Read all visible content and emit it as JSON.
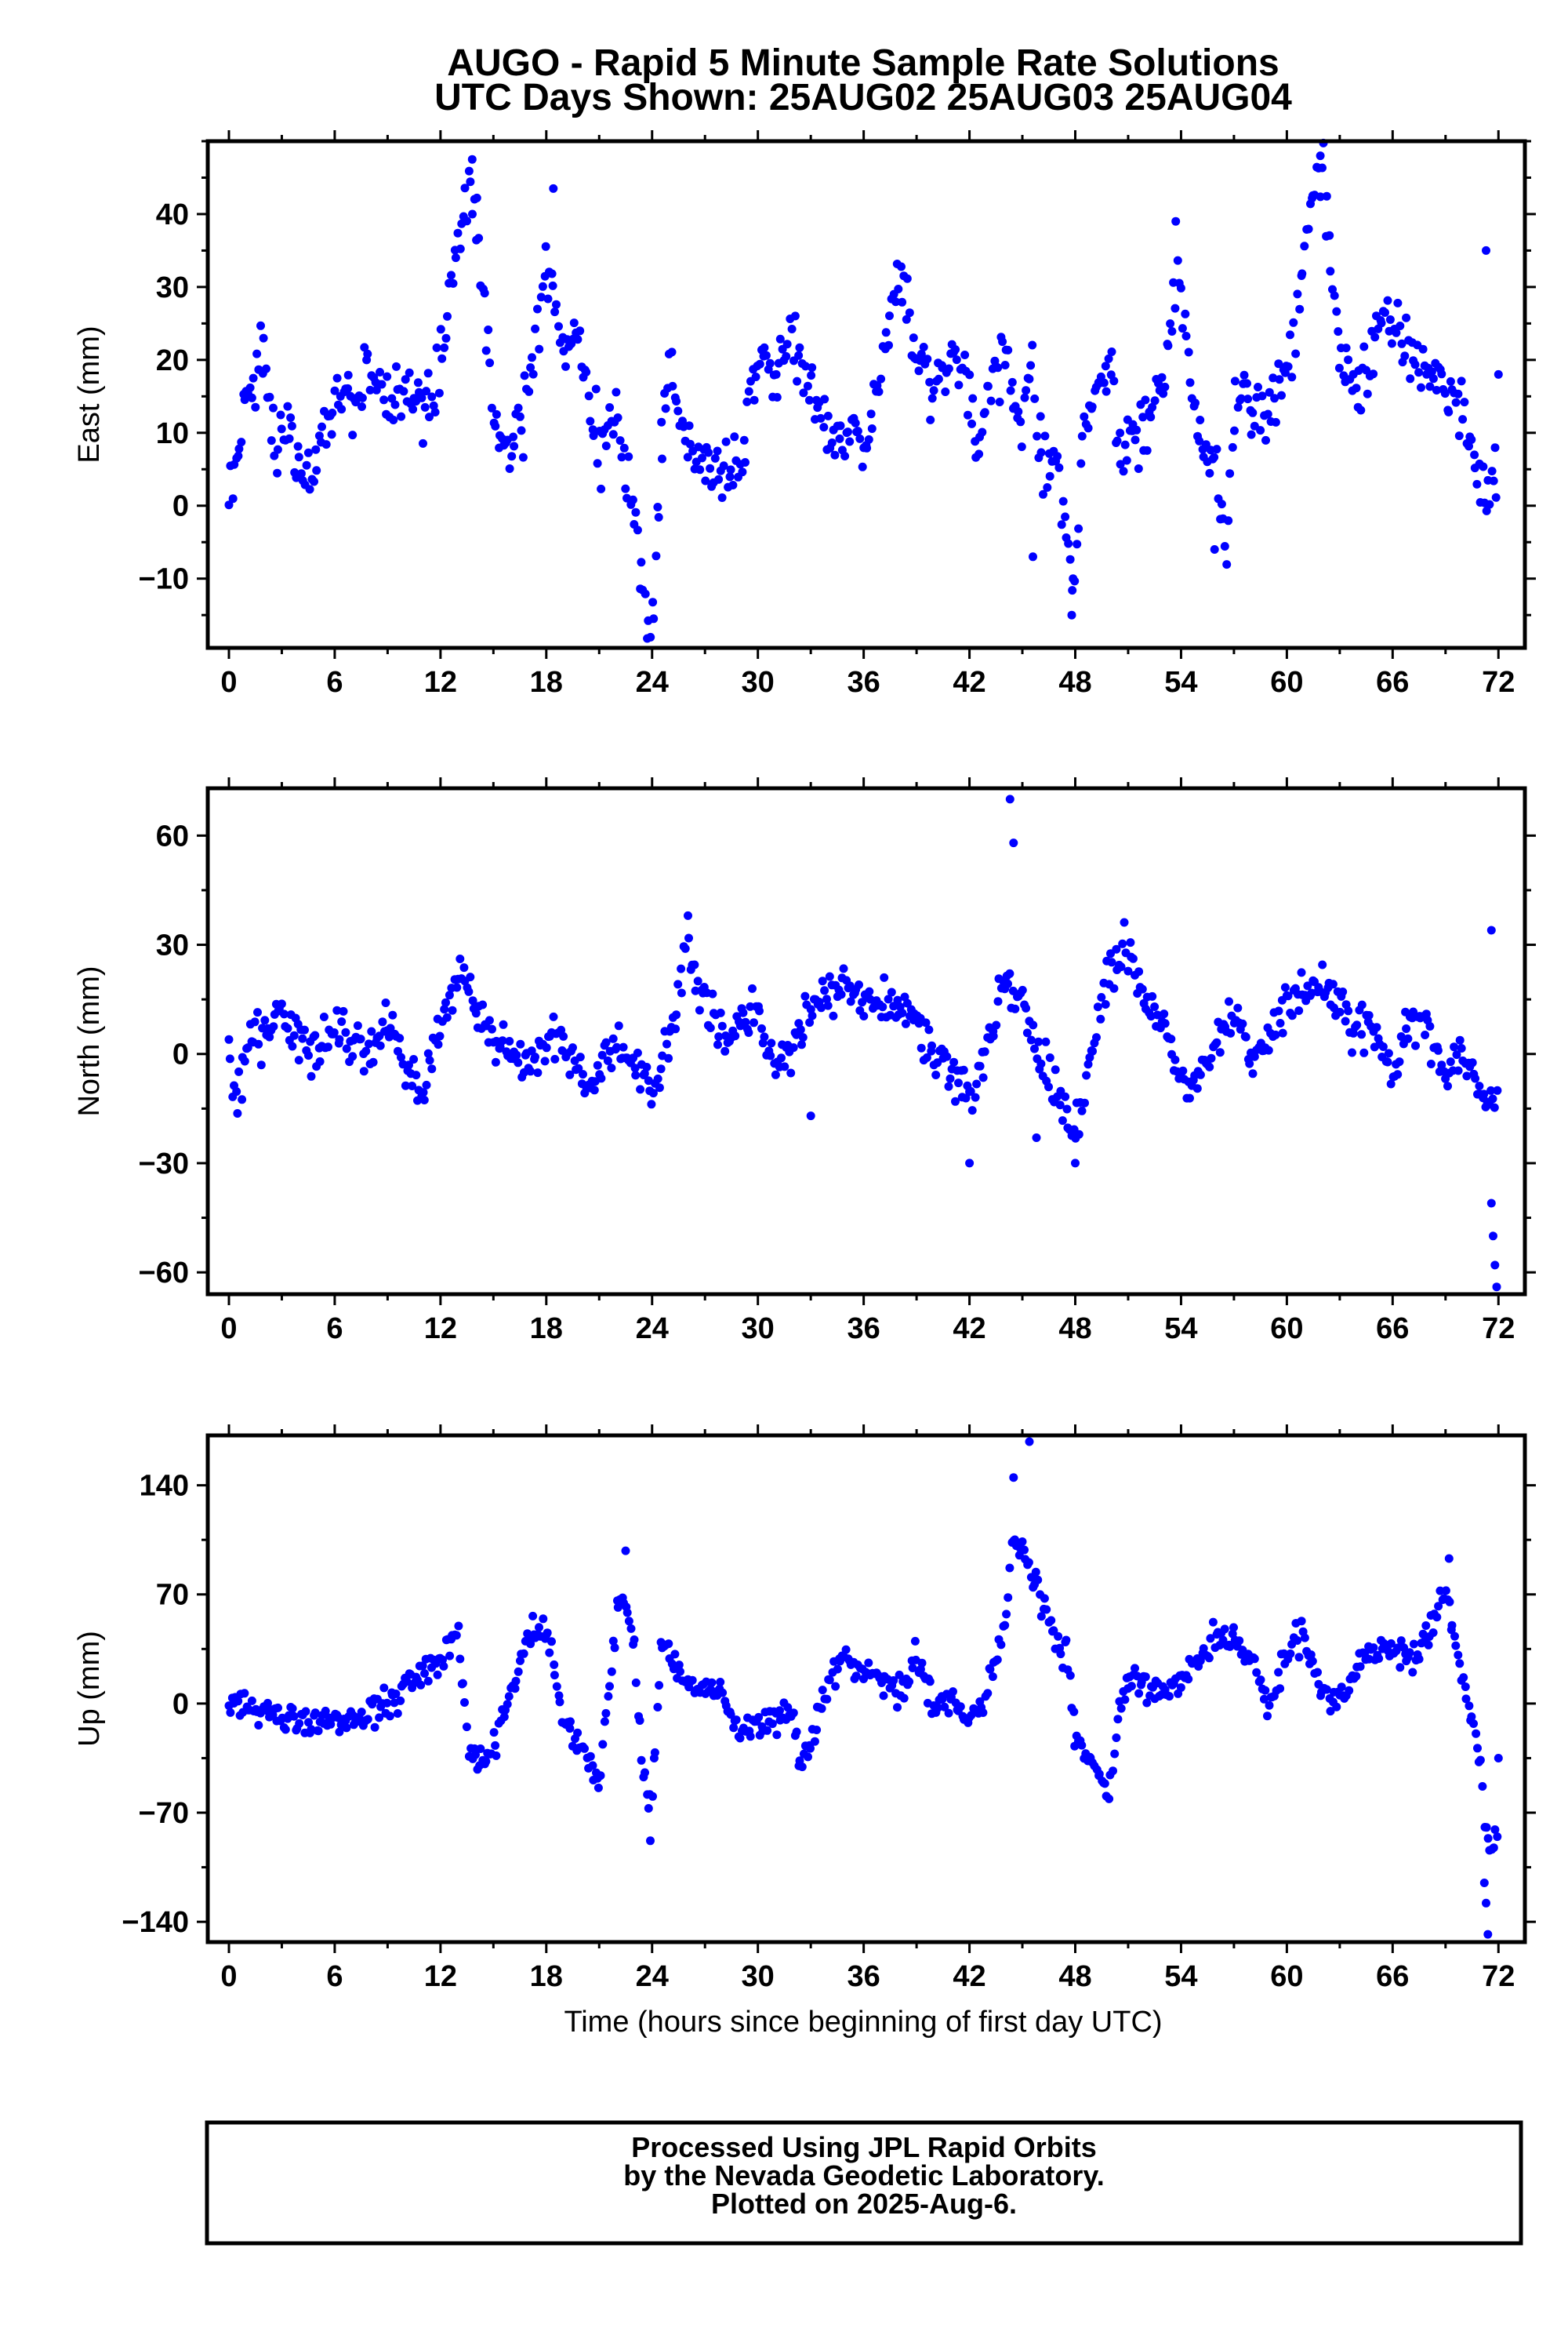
{
  "title_line1": "AUGO - Rapid 5 Minute Sample Rate Solutions",
  "title_line2": "UTC Days Shown:  25AUG02 25AUG03 25AUG04",
  "xlabel": "Time (hours since beginning of first day UTC)",
  "footer": {
    "line1": "Processed Using JPL Rapid Orbits",
    "line2": "by the Nevada Geodetic Laboratory.",
    "line3": "Plotted on 2025-Aug-6."
  },
  "colors": {
    "points": "#0000ff",
    "frame": "#000000"
  },
  "chart_data": [
    {
      "type": "scatter",
      "name": "east",
      "ylabel": "East (mm)",
      "xlim": [
        -1.2,
        73.5
      ],
      "ylim": [
        -19.5,
        50
      ],
      "xticks": [
        0,
        6,
        12,
        18,
        24,
        30,
        36,
        42,
        48,
        54,
        60,
        66,
        72
      ],
      "yticks": [
        -10,
        0,
        10,
        20,
        30,
        40
      ],
      "grid": false,
      "anchors": [
        [
          0,
          0
        ],
        [
          1,
          15
        ],
        [
          2,
          21
        ],
        [
          2.5,
          8
        ],
        [
          3.5,
          9
        ],
        [
          4,
          4
        ],
        [
          5,
          6
        ],
        [
          6,
          16
        ],
        [
          7,
          15
        ],
        [
          8,
          18
        ],
        [
          9,
          12
        ],
        [
          10,
          16
        ],
        [
          11,
          14
        ],
        [
          12,
          19
        ],
        [
          12.5,
          27
        ],
        [
          13,
          36
        ],
        [
          13.5,
          43
        ],
        [
          14,
          42
        ],
        [
          14.5,
          28
        ],
        [
          15,
          12
        ],
        [
          16,
          6
        ],
        [
          17,
          16
        ],
        [
          18,
          32
        ],
        [
          18.5,
          28
        ],
        [
          19,
          22
        ],
        [
          20,
          20
        ],
        [
          21,
          8
        ],
        [
          22,
          15
        ],
        [
          22.5,
          5
        ],
        [
          23,
          -2
        ],
        [
          23.5,
          -10
        ],
        [
          24,
          -18
        ],
        [
          24.5,
          8
        ],
        [
          25,
          18
        ],
        [
          26,
          10
        ],
        [
          27,
          5
        ],
        [
          28,
          3
        ],
        [
          29,
          5
        ],
        [
          30,
          21
        ],
        [
          31,
          18
        ],
        [
          32,
          22
        ],
        [
          33,
          16
        ],
        [
          34,
          9
        ],
        [
          35,
          11
        ],
        [
          36,
          8
        ],
        [
          37,
          18
        ],
        [
          38,
          30
        ],
        [
          38.5,
          27
        ],
        [
          39,
          20
        ],
        [
          40,
          16
        ],
        [
          41,
          19
        ],
        [
          42,
          18
        ],
        [
          42.5,
          5
        ],
        [
          43,
          18
        ],
        [
          44,
          20
        ],
        [
          45,
          10
        ],
        [
          45.5,
          20
        ],
        [
          46,
          8
        ],
        [
          47,
          4
        ],
        [
          47.5,
          -4
        ],
        [
          48,
          -12
        ],
        [
          48.5,
          10
        ],
        [
          49,
          14
        ],
        [
          50,
          20
        ],
        [
          50.5,
          5
        ],
        [
          51,
          9
        ],
        [
          52,
          12
        ],
        [
          53,
          18
        ],
        [
          54,
          32
        ],
        [
          54.5,
          18
        ],
        [
          55,
          10
        ],
        [
          56,
          6
        ],
        [
          56.5,
          -5
        ],
        [
          57,
          10
        ],
        [
          57.5,
          18
        ],
        [
          58,
          11
        ],
        [
          59,
          14
        ],
        [
          60,
          18
        ],
        [
          61,
          32
        ],
        [
          61.5,
          44
        ],
        [
          62,
          46
        ],
        [
          63,
          20
        ],
        [
          64,
          16
        ],
        [
          65,
          22
        ],
        [
          66,
          28
        ],
        [
          67,
          20
        ],
        [
          68,
          18
        ],
        [
          69,
          16
        ],
        [
          70,
          14
        ],
        [
          71,
          2
        ],
        [
          72,
          5
        ]
      ],
      "outliers": [
        [
          13.8,
          47.5
        ],
        [
          18.4,
          43.5
        ],
        [
          45.6,
          -7
        ],
        [
          47.8,
          -15
        ],
        [
          53.7,
          39
        ],
        [
          55.9,
          -6
        ],
        [
          61.9,
          48
        ],
        [
          71.3,
          35
        ],
        [
          72,
          18
        ]
      ],
      "noise": 3.2
    },
    {
      "type": "scatter",
      "name": "north",
      "ylabel": "North (mm)",
      "xlim": [
        -1.2,
        73.5
      ],
      "ylim": [
        -66,
        73
      ],
      "xticks": [
        0,
        6,
        12,
        18,
        24,
        30,
        36,
        42,
        48,
        54,
        60,
        66,
        72
      ],
      "yticks": [
        -60,
        -30,
        0,
        30,
        60
      ],
      "grid": false,
      "anchors": [
        [
          0,
          -2
        ],
        [
          0.5,
          -13
        ],
        [
          1,
          3
        ],
        [
          2,
          5
        ],
        [
          3,
          12
        ],
        [
          4,
          5
        ],
        [
          5,
          -3
        ],
        [
          6,
          8
        ],
        [
          7,
          2
        ],
        [
          8,
          0
        ],
        [
          9,
          12
        ],
        [
          10,
          -3
        ],
        [
          11,
          -8
        ],
        [
          12,
          5
        ],
        [
          13,
          22
        ],
        [
          14,
          12
        ],
        [
          15,
          4
        ],
        [
          16,
          0
        ],
        [
          17,
          -3
        ],
        [
          18,
          2
        ],
        [
          19,
          4
        ],
        [
          20,
          -8
        ],
        [
          21,
          -5
        ],
        [
          22,
          4
        ],
        [
          23,
          -3
        ],
        [
          24,
          -12
        ],
        [
          25,
          5
        ],
        [
          26,
          30
        ],
        [
          27,
          14
        ],
        [
          28,
          5
        ],
        [
          29,
          8
        ],
        [
          30,
          10
        ],
        [
          31,
          -5
        ],
        [
          32,
          2
        ],
        [
          33,
          15
        ],
        [
          34,
          14
        ],
        [
          35,
          20
        ],
        [
          36,
          12
        ],
        [
          37,
          16
        ],
        [
          38,
          12
        ],
        [
          39,
          8
        ],
        [
          40,
          0
        ],
        [
          41,
          -5
        ],
        [
          42,
          -15
        ],
        [
          43,
          5
        ],
        [
          44,
          20
        ],
        [
          45,
          14
        ],
        [
          46,
          -2
        ],
        [
          47,
          -12
        ],
        [
          48,
          -22
        ],
        [
          49,
          5
        ],
        [
          50,
          22
        ],
        [
          51,
          30
        ],
        [
          52,
          14
        ],
        [
          53,
          8
        ],
        [
          54,
          -5
        ],
        [
          55,
          -8
        ],
        [
          56,
          5
        ],
        [
          57,
          10
        ],
        [
          58,
          -2
        ],
        [
          59,
          5
        ],
        [
          60,
          12
        ],
        [
          61,
          18
        ],
        [
          62,
          18
        ],
        [
          63,
          10
        ],
        [
          64,
          6
        ],
        [
          65,
          5
        ],
        [
          66,
          -6
        ],
        [
          67,
          10
        ],
        [
          68,
          6
        ],
        [
          69,
          -6
        ],
        [
          70,
          0
        ],
        [
          71,
          -10
        ],
        [
          72,
          -12
        ]
      ],
      "outliers": [
        [
          44.3,
          70
        ],
        [
          44.5,
          58
        ],
        [
          71.6,
          34
        ],
        [
          71.6,
          -41
        ],
        [
          71.7,
          -50
        ],
        [
          71.8,
          -58
        ],
        [
          71.9,
          -64
        ],
        [
          42,
          -30
        ],
        [
          48,
          -30
        ],
        [
          33,
          -17
        ],
        [
          45.8,
          -23
        ]
      ],
      "noise": 4.5
    },
    {
      "type": "scatter",
      "name": "up",
      "ylabel": "Up (mm)",
      "xlim": [
        -1.2,
        73.5
      ],
      "ylim": [
        -153,
        172
      ],
      "xticks": [
        0,
        6,
        12,
        18,
        24,
        30,
        36,
        42,
        48,
        54,
        60,
        66,
        72
      ],
      "yticks": [
        -140,
        -70,
        0,
        70,
        140
      ],
      "grid": false,
      "anchors": [
        [
          0,
          0
        ],
        [
          1,
          -5
        ],
        [
          2,
          -6
        ],
        [
          3,
          -8
        ],
        [
          4,
          -12
        ],
        [
          5,
          -18
        ],
        [
          6,
          -10
        ],
        [
          7,
          -8
        ],
        [
          8,
          -6
        ],
        [
          9,
          -2
        ],
        [
          10,
          10
        ],
        [
          11,
          18
        ],
        [
          12,
          30
        ],
        [
          13,
          45
        ],
        [
          13.5,
          -20
        ],
        [
          14,
          -40
        ],
        [
          15,
          -30
        ],
        [
          16,
          5
        ],
        [
          17,
          45
        ],
        [
          18,
          48
        ],
        [
          19,
          -10
        ],
        [
          20,
          -30
        ],
        [
          21,
          -50
        ],
        [
          22,
          60
        ],
        [
          22.5,
          70
        ],
        [
          23,
          30
        ],
        [
          23.5,
          -40
        ],
        [
          24,
          -70
        ],
        [
          24.5,
          40
        ],
        [
          25,
          30
        ],
        [
          26,
          15
        ],
        [
          27,
          10
        ],
        [
          28,
          5
        ],
        [
          29,
          -20
        ],
        [
          30,
          -15
        ],
        [
          31,
          -10
        ],
        [
          32,
          -8
        ],
        [
          32.5,
          -40
        ],
        [
          33,
          -25
        ],
        [
          34,
          15
        ],
        [
          35,
          30
        ],
        [
          36,
          20
        ],
        [
          37,
          15
        ],
        [
          38,
          5
        ],
        [
          39,
          30
        ],
        [
          40,
          0
        ],
        [
          41,
          0
        ],
        [
          42,
          -10
        ],
        [
          43,
          5
        ],
        [
          44,
          50
        ],
        [
          44.5,
          110
        ],
        [
          45,
          100
        ],
        [
          45.5,
          80
        ],
        [
          46,
          70
        ],
        [
          47,
          40
        ],
        [
          47.5,
          30
        ],
        [
          48,
          -20
        ],
        [
          49,
          -40
        ],
        [
          50,
          -55
        ],
        [
          50.5,
          0
        ],
        [
          51,
          15
        ],
        [
          52,
          10
        ],
        [
          53,
          5
        ],
        [
          54,
          15
        ],
        [
          55,
          25
        ],
        [
          56,
          45
        ],
        [
          57,
          40
        ],
        [
          58,
          30
        ],
        [
          59,
          0
        ],
        [
          60,
          35
        ],
        [
          61,
          45
        ],
        [
          62,
          5
        ],
        [
          63,
          0
        ],
        [
          64,
          25
        ],
        [
          65,
          35
        ],
        [
          66,
          35
        ],
        [
          67,
          25
        ],
        [
          68,
          45
        ],
        [
          69,
          75
        ],
        [
          69.5,
          40
        ],
        [
          70,
          10
        ],
        [
          71,
          -40
        ],
        [
          71.5,
          -100
        ],
        [
          72,
          -80
        ]
      ],
      "outliers": [
        [
          44.5,
          145
        ],
        [
          45.4,
          168
        ],
        [
          22.5,
          98
        ],
        [
          23.9,
          -88
        ],
        [
          71.2,
          -115
        ],
        [
          71.3,
          -128
        ],
        [
          71.4,
          -148
        ],
        [
          72,
          -35
        ],
        [
          69.2,
          93
        ]
      ],
      "noise": 7
    }
  ]
}
